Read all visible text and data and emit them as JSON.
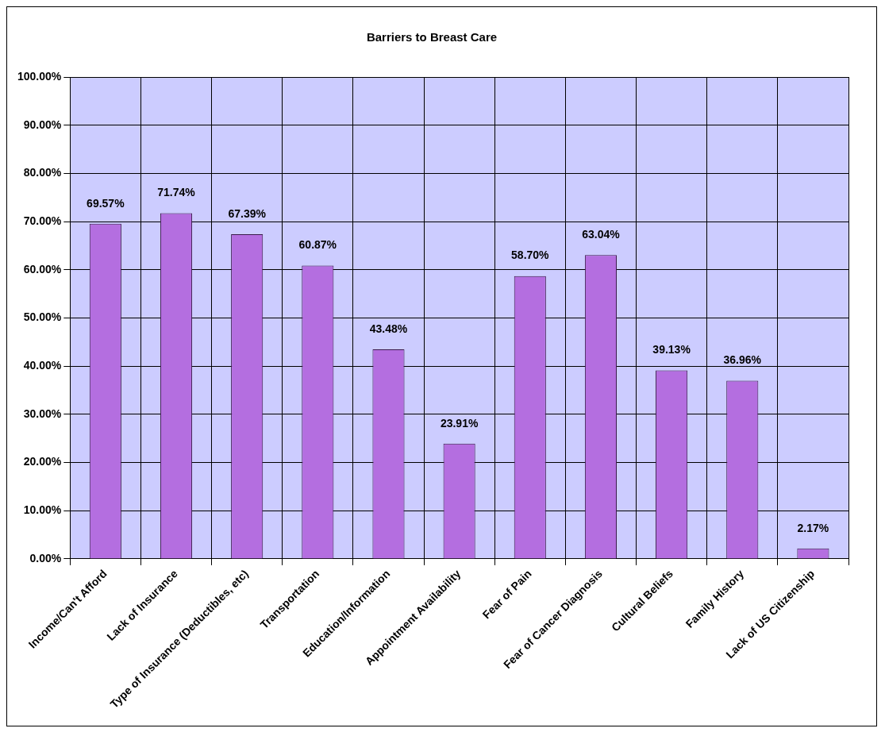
{
  "chart_data": {
    "type": "bar",
    "title": "Barriers to Breast Care",
    "categories": [
      "Income/Can't Afford",
      "Lack of Insurance",
      "Type of Insurance (Deductibles, etc)",
      "Transportation",
      "Education/Information",
      "Appointment Availability",
      "Fear of Pain",
      "Fear of Cancer Diagnosis",
      "Cultural Beliefs",
      "Family History",
      "Lack of US Citizenship"
    ],
    "values": [
      69.57,
      71.74,
      67.39,
      60.87,
      43.48,
      23.91,
      58.7,
      63.04,
      39.13,
      36.96,
      2.17
    ],
    "value_labels": [
      "69.57%",
      "71.74%",
      "67.39%",
      "60.87%",
      "43.48%",
      "23.91%",
      "58.70%",
      "63.04%",
      "39.13%",
      "36.96%",
      "2.17%"
    ],
    "color": "#b46ee0",
    "ylim": [
      0,
      100
    ],
    "yticks": [
      {
        "value": 0,
        "label": "0.00%"
      },
      {
        "value": 10,
        "label": "10.00%"
      },
      {
        "value": 20,
        "label": "20.00%"
      },
      {
        "value": 30,
        "label": "30.00%"
      },
      {
        "value": 40,
        "label": "40.00%"
      },
      {
        "value": 50,
        "label": "50.00%"
      },
      {
        "value": 60,
        "label": "60.00%"
      },
      {
        "value": 70,
        "label": "70.00%"
      },
      {
        "value": 80,
        "label": "80.00%"
      },
      {
        "value": 90,
        "label": "90.00%"
      },
      {
        "value": 100,
        "label": "100.00%"
      }
    ],
    "grid": true,
    "legend": false
  }
}
